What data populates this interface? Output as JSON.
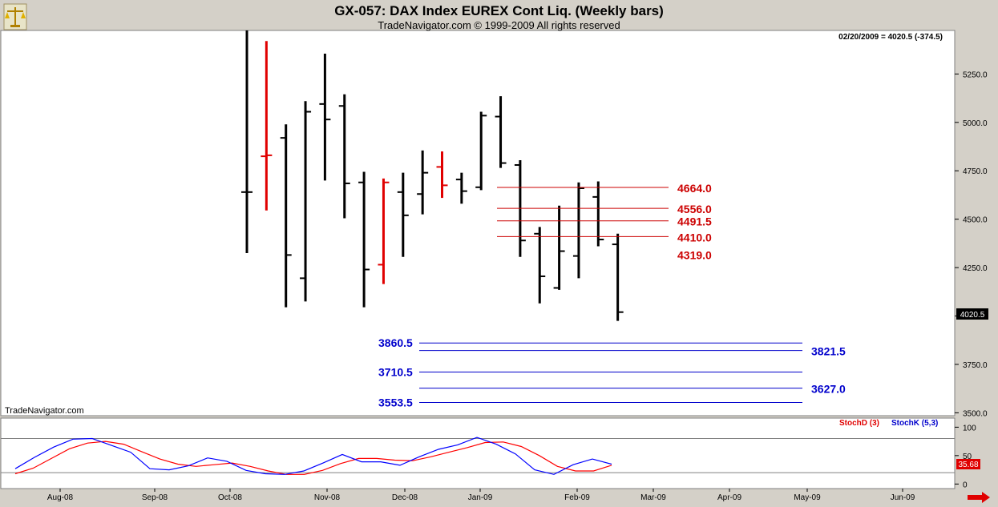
{
  "header": {
    "title": "GX-057:  DAX Index EUREX Cont Liq.  (Weekly bars)",
    "copyright": "TradeNavigator.com © 1999-2009 All rights reserved"
  },
  "watermark": "TradeNavigator.com",
  "icons": {
    "logo": "scale-logo-icon",
    "scroll": "right-arrow-icon"
  },
  "colors": {
    "up": "#000000",
    "down": "#e00000",
    "resistance": "#cc0000",
    "support": "#0000cc",
    "stochD": "#ff0000",
    "stochK": "#0000ff",
    "bg": "#ffffff",
    "frame": "#d4d0c8"
  },
  "chart_data": [
    {
      "type": "ohlc",
      "title": "GX-057:  DAX Index EUREX Cont Liq.  (Weekly bars)",
      "last_label": "02/20/2009 = 4020.5 (-374.5)",
      "last_price_tag": "4020.5",
      "x_ticks": [
        "Aug-08",
        "Sep-08",
        "Oct-08",
        "Nov-08",
        "Dec-08",
        "Jan-09",
        "Feb-09",
        "Mar-09",
        "Apr-09",
        "May-09",
        "Jun-09"
      ],
      "y_ticks": [
        3500,
        3750,
        4000,
        4250,
        4500,
        4750,
        5000,
        5250
      ],
      "y_tick_labels": [
        "3500.0",
        "3750.0",
        "4000.0",
        "4250.0",
        "4500.0",
        "4750.0",
        "5000.0",
        "5250.0"
      ],
      "ylim": [
        3485,
        5475
      ],
      "bars": [
        {
          "o": 4640,
          "h": 5475,
          "l": 4325,
          "c": 4640,
          "red": false
        },
        {
          "o": 4825,
          "h": 5420,
          "l": 4545,
          "c": 4830,
          "red": true
        },
        {
          "o": 4920,
          "h": 4990,
          "l": 4045,
          "c": 4315,
          "red": false
        },
        {
          "o": 4195,
          "h": 5110,
          "l": 4075,
          "c": 5055,
          "red": false
        },
        {
          "o": 5095,
          "h": 5355,
          "l": 4700,
          "c": 5015,
          "red": false
        },
        {
          "o": 5085,
          "h": 5145,
          "l": 4505,
          "c": 4685,
          "red": false
        },
        {
          "o": 4690,
          "h": 4745,
          "l": 4045,
          "c": 4240,
          "red": false
        },
        {
          "o": 4265,
          "h": 4710,
          "l": 4165,
          "c": 4690,
          "red": true
        },
        {
          "o": 4640,
          "h": 4740,
          "l": 4305,
          "c": 4520,
          "red": false
        },
        {
          "o": 4630,
          "h": 4855,
          "l": 4525,
          "c": 4740,
          "red": false
        },
        {
          "o": 4770,
          "h": 4850,
          "l": 4610,
          "c": 4675,
          "red": true
        },
        {
          "o": 4705,
          "h": 4740,
          "l": 4580,
          "c": 4645,
          "red": false
        },
        {
          "o": 4665,
          "h": 5055,
          "l": 4650,
          "c": 5035,
          "red": false
        },
        {
          "o": 5030,
          "h": 5135,
          "l": 4765,
          "c": 4790,
          "red": false
        },
        {
          "o": 4780,
          "h": 4805,
          "l": 4305,
          "c": 4390,
          "red": false
        },
        {
          "o": 4425,
          "h": 4460,
          "l": 4065,
          "c": 4205,
          "red": false
        },
        {
          "o": 4145,
          "h": 4570,
          "l": 4135,
          "c": 4335,
          "red": false
        },
        {
          "o": 4310,
          "h": 4690,
          "l": 4195,
          "c": 4660,
          "red": false
        },
        {
          "o": 4615,
          "h": 4695,
          "l": 4360,
          "c": 4395,
          "red": false
        },
        {
          "o": 4370,
          "h": 4425,
          "l": 3975,
          "c": 4020,
          "red": false
        }
      ],
      "resistance_levels": [
        4664.0,
        4556.0,
        4491.5,
        4410.0,
        4319.0
      ],
      "resistance_labels": [
        "4664.0",
        "4556.0",
        "4491.5",
        "4410.0",
        "4319.0"
      ],
      "support_levels": [
        3860.5,
        3821.5,
        3710.5,
        3627.0,
        3553.5
      ],
      "support_labels": [
        "3860.5",
        "3821.5",
        "3710.5",
        "3627.0",
        "3553.5"
      ]
    },
    {
      "type": "line",
      "series": [
        {
          "name": "StochD (3)",
          "values": [
            18,
            28,
            45,
            62,
            72,
            75,
            70,
            57,
            44,
            35,
            31,
            34,
            37,
            31,
            23,
            17,
            17,
            24,
            36,
            45,
            45,
            42,
            41,
            48,
            56,
            64,
            73,
            74,
            66,
            50,
            31,
            23,
            23,
            33
          ]
        },
        {
          "name": "StochK (5,3)",
          "values": [
            27,
            47,
            65,
            79,
            80,
            68,
            56,
            27,
            25,
            32,
            46,
            40,
            24,
            18,
            17,
            23,
            37,
            52,
            39,
            39,
            33,
            48,
            61,
            69,
            82,
            70,
            53,
            25,
            17,
            34,
            44,
            35
          ]
        }
      ],
      "y_ticks": [
        0,
        50,
        100
      ],
      "y_tick_labels": [
        "0",
        "50",
        "100"
      ],
      "ylim": [
        -8,
        116
      ],
      "ref_lines": [
        20,
        80
      ],
      "last_value_tag": "35.68"
    }
  ]
}
